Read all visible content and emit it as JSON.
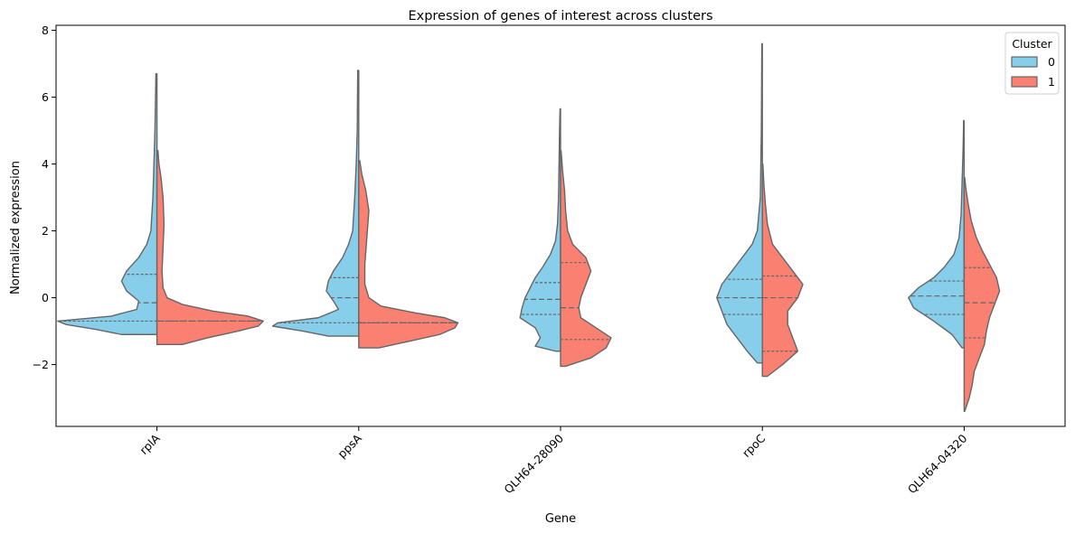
{
  "chart_data": {
    "type": "violin",
    "title": "Expression of genes of interest across clusters",
    "xlabel": "Gene",
    "ylabel": "Normalized expression",
    "ylim": [
      -3.85,
      8.15
    ],
    "yticks": [
      -2,
      0,
      2,
      4,
      6,
      8
    ],
    "categories": [
      "rplA",
      "ppsA",
      "QLH64-28090",
      "rpoC",
      "QLH64-04320"
    ],
    "legend": {
      "title": "Cluster",
      "placement": "top-right",
      "entries": [
        "0",
        "1"
      ]
    },
    "colors": {
      "cluster_0": "#87ceeb",
      "cluster_1": "#fa8072",
      "outline": "#666666"
    },
    "series": [
      {
        "name": "0",
        "violins": [
          {
            "min": -1.1,
            "max": 6.7,
            "q1": -0.7,
            "median": -0.15,
            "q3": 0.7,
            "density": [
              [
                -1.1,
                0.35
              ],
              [
                -0.95,
                0.6
              ],
              [
                -0.8,
                0.9
              ],
              [
                -0.7,
                0.98
              ],
              [
                -0.55,
                0.45
              ],
              [
                -0.35,
                0.2
              ],
              [
                -0.1,
                0.18
              ],
              [
                0.2,
                0.3
              ],
              [
                0.5,
                0.35
              ],
              [
                0.8,
                0.3
              ],
              [
                1.2,
                0.18
              ],
              [
                1.6,
                0.1
              ],
              [
                2.0,
                0.06
              ],
              [
                3.0,
                0.04
              ],
              [
                4.0,
                0.03
              ],
              [
                5.0,
                0.02
              ],
              [
                6.7,
                0.01
              ]
            ]
          },
          {
            "min": -1.15,
            "max": 6.8,
            "q1": -0.75,
            "median": 0.0,
            "q3": 0.6,
            "density": [
              [
                -1.15,
                0.3
              ],
              [
                -1.0,
                0.55
              ],
              [
                -0.85,
                0.85
              ],
              [
                -0.75,
                0.8
              ],
              [
                -0.6,
                0.4
              ],
              [
                -0.35,
                0.2
              ],
              [
                -0.1,
                0.25
              ],
              [
                0.2,
                0.32
              ],
              [
                0.5,
                0.3
              ],
              [
                0.8,
                0.25
              ],
              [
                1.2,
                0.16
              ],
              [
                1.6,
                0.1
              ],
              [
                2.0,
                0.06
              ],
              [
                3.0,
                0.04
              ],
              [
                4.0,
                0.025
              ],
              [
                5.0,
                0.015
              ],
              [
                6.8,
                0.01
              ]
            ]
          },
          {
            "min": -1.6,
            "max": 5.65,
            "q1": -0.5,
            "median": -0.05,
            "q3": 0.45,
            "density": [
              [
                -1.6,
                0.05
              ],
              [
                -1.45,
                0.25
              ],
              [
                -1.2,
                0.2
              ],
              [
                -0.9,
                0.25
              ],
              [
                -0.6,
                0.4
              ],
              [
                -0.3,
                0.38
              ],
              [
                0.0,
                0.35
              ],
              [
                0.3,
                0.3
              ],
              [
                0.6,
                0.25
              ],
              [
                0.9,
                0.18
              ],
              [
                1.3,
                0.1
              ],
              [
                1.7,
                0.05
              ],
              [
                2.2,
                0.03
              ],
              [
                3.0,
                0.02
              ],
              [
                4.0,
                0.015
              ],
              [
                5.0,
                0.01
              ],
              [
                5.65,
                0.005
              ]
            ]
          },
          {
            "min": -1.95,
            "max": 7.6,
            "q1": -0.5,
            "median": 0.0,
            "q3": 0.55,
            "density": [
              [
                -1.95,
                0.05
              ],
              [
                -1.6,
                0.15
              ],
              [
                -1.2,
                0.25
              ],
              [
                -0.8,
                0.35
              ],
              [
                -0.4,
                0.4
              ],
              [
                0.0,
                0.45
              ],
              [
                0.4,
                0.4
              ],
              [
                0.8,
                0.3
              ],
              [
                1.2,
                0.2
              ],
              [
                1.6,
                0.1
              ],
              [
                2.0,
                0.05
              ],
              [
                3.0,
                0.02
              ],
              [
                4.0,
                0.015
              ],
              [
                5.0,
                0.01
              ],
              [
                6.0,
                0.008
              ],
              [
                7.6,
                0.005
              ]
            ]
          },
          {
            "min": -1.5,
            "max": 5.3,
            "q1": -0.5,
            "median": 0.05,
            "q3": 0.5,
            "density": [
              [
                -1.5,
                0.02
              ],
              [
                -1.1,
                0.12
              ],
              [
                -0.7,
                0.3
              ],
              [
                -0.3,
                0.5
              ],
              [
                0.0,
                0.55
              ],
              [
                0.3,
                0.45
              ],
              [
                0.6,
                0.3
              ],
              [
                0.9,
                0.2
              ],
              [
                1.3,
                0.1
              ],
              [
                1.8,
                0.05
              ],
              [
                2.5,
                0.03
              ],
              [
                3.5,
                0.02
              ],
              [
                4.5,
                0.01
              ],
              [
                5.3,
                0.005
              ]
            ]
          }
        ]
      },
      {
        "name": "1",
        "violins": [
          {
            "min": -1.4,
            "max": 4.4,
            "q1": -0.7,
            "median": -0.7,
            "q3": -0.7,
            "density": [
              [
                -1.4,
                0.25
              ],
              [
                -1.2,
                0.5
              ],
              [
                -1.0,
                0.8
              ],
              [
                -0.85,
                1.0
              ],
              [
                -0.7,
                1.05
              ],
              [
                -0.55,
                0.9
              ],
              [
                -0.4,
                0.55
              ],
              [
                -0.2,
                0.25
              ],
              [
                0.0,
                0.1
              ],
              [
                0.3,
                0.06
              ],
              [
                0.8,
                0.05
              ],
              [
                1.5,
                0.06
              ],
              [
                2.2,
                0.07
              ],
              [
                3.0,
                0.06
              ],
              [
                3.6,
                0.04
              ],
              [
                4.0,
                0.02
              ],
              [
                4.4,
                0.01
              ]
            ]
          },
          {
            "min": -1.5,
            "max": 4.1,
            "q1": -0.75,
            "median": -0.75,
            "q3": -0.75,
            "density": [
              [
                -1.5,
                0.2
              ],
              [
                -1.3,
                0.5
              ],
              [
                -1.1,
                0.8
              ],
              [
                -0.9,
                0.95
              ],
              [
                -0.75,
                0.98
              ],
              [
                -0.6,
                0.85
              ],
              [
                -0.45,
                0.55
              ],
              [
                -0.25,
                0.22
              ],
              [
                0.0,
                0.1
              ],
              [
                0.4,
                0.06
              ],
              [
                1.0,
                0.06
              ],
              [
                1.8,
                0.08
              ],
              [
                2.6,
                0.1
              ],
              [
                3.2,
                0.07
              ],
              [
                3.7,
                0.03
              ],
              [
                4.1,
                0.01
              ]
            ]
          },
          {
            "min": -2.05,
            "max": 4.4,
            "q1": -1.25,
            "median": -0.3,
            "q3": 1.05,
            "density": [
              [
                -2.05,
                0.05
              ],
              [
                -1.8,
                0.3
              ],
              [
                -1.5,
                0.45
              ],
              [
                -1.2,
                0.5
              ],
              [
                -0.9,
                0.35
              ],
              [
                -0.6,
                0.2
              ],
              [
                -0.3,
                0.18
              ],
              [
                0.0,
                0.2
              ],
              [
                0.4,
                0.25
              ],
              [
                0.8,
                0.3
              ],
              [
                1.2,
                0.25
              ],
              [
                1.6,
                0.12
              ],
              [
                2.0,
                0.07
              ],
              [
                2.6,
                0.05
              ],
              [
                3.2,
                0.04
              ],
              [
                3.8,
                0.02
              ],
              [
                4.4,
                0.005
              ]
            ]
          },
          {
            "min": -2.35,
            "max": 4.0,
            "q1": -1.6,
            "median": 0.0,
            "q3": 0.65,
            "density": [
              [
                -2.35,
                0.05
              ],
              [
                -2.0,
                0.2
              ],
              [
                -1.6,
                0.35
              ],
              [
                -1.2,
                0.3
              ],
              [
                -0.8,
                0.25
              ],
              [
                -0.4,
                0.25
              ],
              [
                0.0,
                0.35
              ],
              [
                0.4,
                0.4
              ],
              [
                0.8,
                0.3
              ],
              [
                1.2,
                0.2
              ],
              [
                1.6,
                0.1
              ],
              [
                2.2,
                0.05
              ],
              [
                2.8,
                0.03
              ],
              [
                3.4,
                0.015
              ],
              [
                4.0,
                0.005
              ]
            ]
          },
          {
            "min": -3.4,
            "max": 3.6,
            "q1": -1.2,
            "median": -0.15,
            "q3": 0.9,
            "density": [
              [
                -3.4,
                0.005
              ],
              [
                -3.0,
                0.05
              ],
              [
                -2.6,
                0.08
              ],
              [
                -2.2,
                0.1
              ],
              [
                -1.8,
                0.15
              ],
              [
                -1.4,
                0.2
              ],
              [
                -1.0,
                0.22
              ],
              [
                -0.6,
                0.25
              ],
              [
                -0.2,
                0.3
              ],
              [
                0.2,
                0.35
              ],
              [
                0.6,
                0.32
              ],
              [
                1.0,
                0.25
              ],
              [
                1.4,
                0.18
              ],
              [
                1.8,
                0.12
              ],
              [
                2.3,
                0.07
              ],
              [
                2.8,
                0.04
              ],
              [
                3.2,
                0.02
              ],
              [
                3.6,
                0.005
              ]
            ]
          }
        ]
      }
    ]
  }
}
